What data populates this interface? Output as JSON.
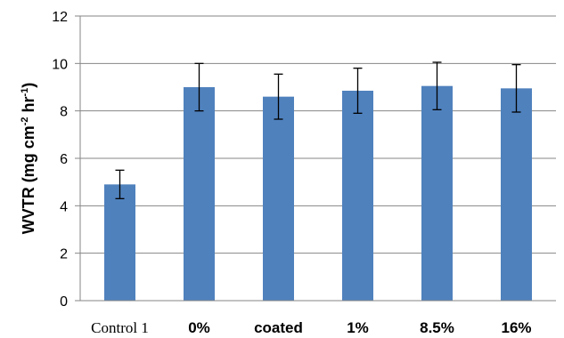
{
  "chart_data": {
    "type": "bar",
    "categories": [
      "Control 1",
      "0%",
      "coated",
      "1%",
      "8.5%",
      "16%"
    ],
    "values": [
      4.9,
      9.0,
      8.6,
      8.85,
      9.05,
      8.95
    ],
    "errors": [
      0.6,
      1.0,
      0.95,
      0.95,
      1.0,
      1.0
    ],
    "ylim": [
      0,
      12
    ],
    "yticks": [
      0,
      2,
      4,
      6,
      8,
      10,
      12
    ],
    "ylabel": {
      "main": "WVTR (mg cm",
      "sup1": "-2",
      "mid": " hr",
      "sup2": "-1",
      "end": ")"
    },
    "grid": true,
    "colors": {
      "bar": "#4f81bd",
      "grid": "#868686",
      "axis": "#868686",
      "error": "#000000"
    }
  }
}
